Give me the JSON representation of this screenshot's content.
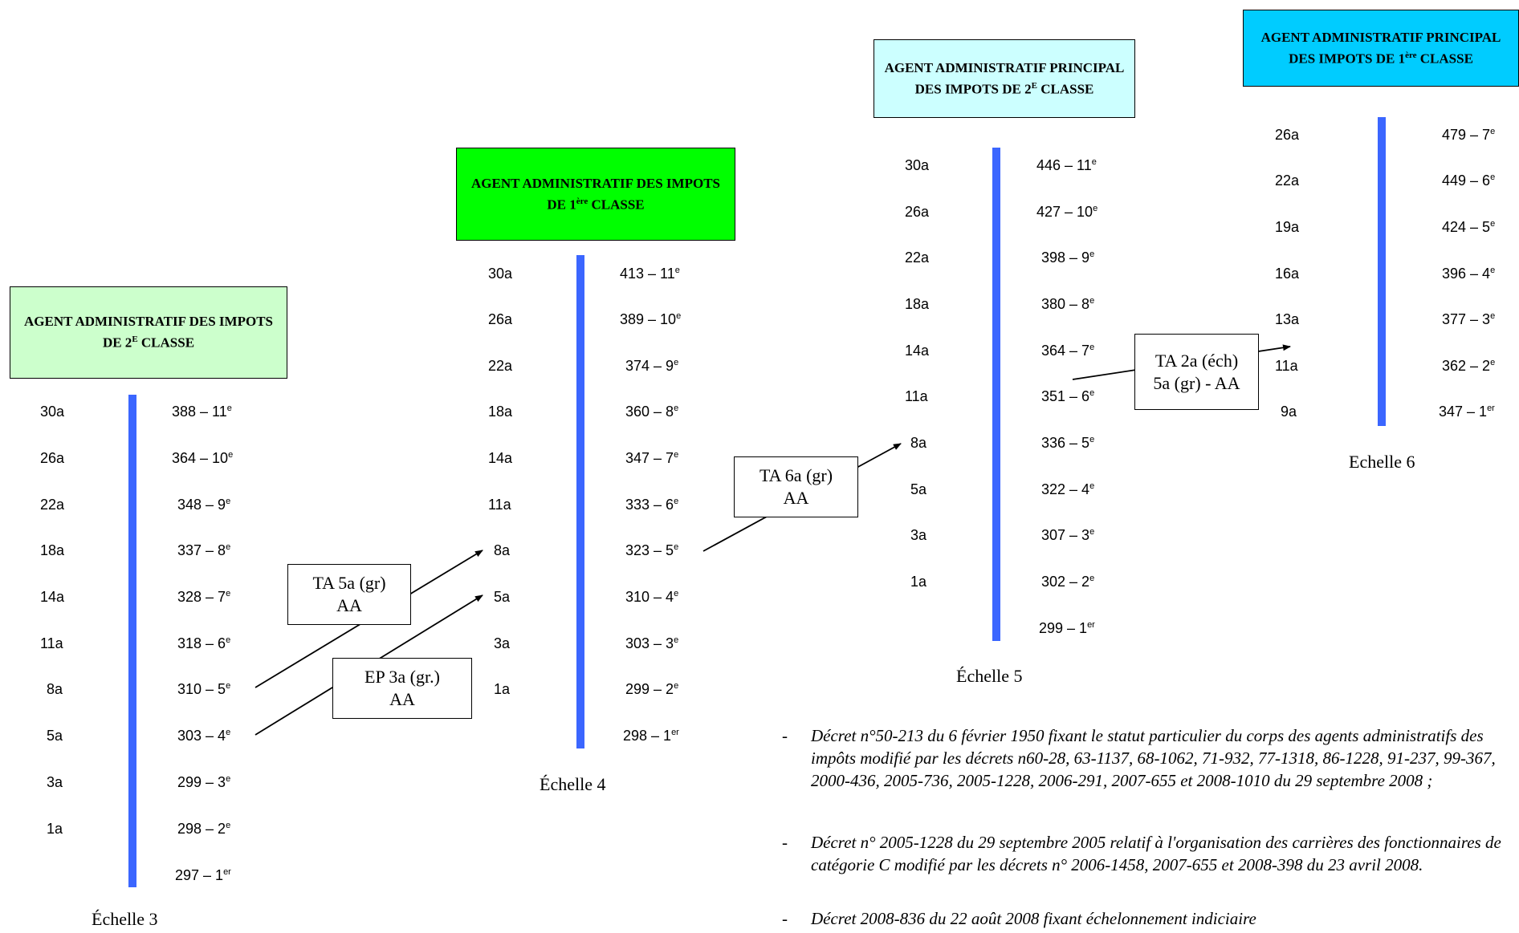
{
  "colors": {
    "bar": "#3b66ff",
    "grade1_bg": "#ccffcc",
    "grade2_bg": "#00ff00",
    "grade3_bg": "#ccffff",
    "grade4_bg": "#00ccff"
  },
  "grades": [
    {
      "title_pre": "AGENT ADMINISTRATIF DES IMPOTS DE 2",
      "title_sup": "E",
      "title_post": " CLASSE",
      "scale": "Échelle 3",
      "durations": [
        "30a",
        "26a",
        "22a",
        "18a",
        "14a",
        "11a",
        "8a",
        "5a",
        "3a",
        "1a"
      ],
      "echelons": [
        {
          "value": "388 – 11",
          "sup": "e"
        },
        {
          "value": "364 – 10",
          "sup": "e"
        },
        {
          "value": "348 – 9",
          "sup": "e"
        },
        {
          "value": "337 – 8",
          "sup": "e"
        },
        {
          "value": "328 – 7",
          "sup": "e"
        },
        {
          "value": "318 – 6",
          "sup": "e"
        },
        {
          "value": "310 – 5",
          "sup": "e"
        },
        {
          "value": "303 – 4",
          "sup": "e"
        },
        {
          "value": "299 – 3",
          "sup": "e"
        },
        {
          "value": "298 – 2",
          "sup": "e"
        },
        {
          "value": "297 – 1",
          "sup": "er"
        }
      ]
    },
    {
      "title_pre": "AGENT ADMINISTRATIF DES IMPOTS DE 1",
      "title_sup": "ère",
      "title_post": " CLASSE",
      "scale": "Échelle 4",
      "durations": [
        "30a",
        "26a",
        "22a",
        "18a",
        "14a",
        "11a",
        "8a",
        "5a",
        "3a",
        "1a"
      ],
      "echelons": [
        {
          "value": "413 – 11",
          "sup": "e"
        },
        {
          "value": "389 – 10",
          "sup": "e"
        },
        {
          "value": "374 – 9",
          "sup": "e"
        },
        {
          "value": "360 – 8",
          "sup": "e"
        },
        {
          "value": "347 – 7",
          "sup": "e"
        },
        {
          "value": "333 – 6",
          "sup": "e"
        },
        {
          "value": "323 – 5",
          "sup": "e"
        },
        {
          "value": "310 – 4",
          "sup": "e"
        },
        {
          "value": "303 – 3",
          "sup": "e"
        },
        {
          "value": "299 – 2",
          "sup": "e"
        },
        {
          "value": "298 – 1",
          "sup": "er"
        }
      ]
    },
    {
      "title_pre": "AGENT ADMINISTRATIF PRINCIPAL DES IMPOTS DE 2",
      "title_sup": "E",
      "title_post": " CLASSE",
      "scale": "Échelle 5",
      "durations": [
        "30a",
        "26a",
        "22a",
        "18a",
        "14a",
        "11a",
        "8a",
        "5a",
        "3a",
        "1a"
      ],
      "echelons": [
        {
          "value": "446 – 11",
          "sup": "e"
        },
        {
          "value": "427 – 10",
          "sup": "e"
        },
        {
          "value": "398 – 9",
          "sup": "e"
        },
        {
          "value": "380 – 8",
          "sup": "e"
        },
        {
          "value": "364 – 7",
          "sup": "e"
        },
        {
          "value": "351 – 6",
          "sup": "e"
        },
        {
          "value": "336 – 5",
          "sup": "e"
        },
        {
          "value": "322 – 4",
          "sup": "e"
        },
        {
          "value": "307 – 3",
          "sup": "e"
        },
        {
          "value": "302 – 2",
          "sup": "e"
        },
        {
          "value": "299 – 1",
          "sup": "er"
        }
      ]
    },
    {
      "title_pre": "AGENT ADMINISTRATIF PRINCIPAL DES IMPOTS DE 1",
      "title_sup": "ère",
      "title_post": " CLASSE",
      "scale": "Echelle 6",
      "durations": [
        "26a",
        "22a",
        "19a",
        "16a",
        "13a",
        "11a",
        "9a"
      ],
      "echelons": [
        {
          "value": "479 – 7",
          "sup": "e"
        },
        {
          "value": "449 – 6",
          "sup": "e"
        },
        {
          "value": "424 – 5",
          "sup": "e"
        },
        {
          "value": "396 – 4",
          "sup": "e"
        },
        {
          "value": "377 – 3",
          "sup": "e"
        },
        {
          "value": "362 – 2",
          "sup": "e"
        },
        {
          "value": "347 – 1",
          "sup": "er"
        }
      ]
    }
  ],
  "transitions": [
    {
      "line1": "TA 5a (gr)",
      "line2": "AA"
    },
    {
      "line1": "EP 3a (gr.)",
      "line2": "AA"
    },
    {
      "line1": "TA 6a (gr)",
      "line2": "AA"
    },
    {
      "line1": "TA 2a (éch)",
      "line2": "5a (gr) - AA"
    }
  ],
  "notes": [
    "Décret n°50-213 du 6 février 1950 fixant le statut particulier du corps des agents administratifs des impôts modifié par les décrets n60-28, 63-1137, 68-1062, 71-932, 77-1318, 86-1228, 91-237, 99-367, 2000-436, 2005-736, 2005-1228, 2006-291, 2007-655 et 2008-1010 du 29 septembre 2008 ;",
    "Décret n° 2005-1228 du 29 septembre 2005 relatif à l'organisation des carrières des fonctionnaires de catégorie C modifié par les décrets n° 2006-1458, 2007-655 et 2008-398 du 23 avril 2008.",
    "Décret 2008-836 du 22 août 2008 fixant échelonnement indiciaire"
  ],
  "note_dash": "-"
}
